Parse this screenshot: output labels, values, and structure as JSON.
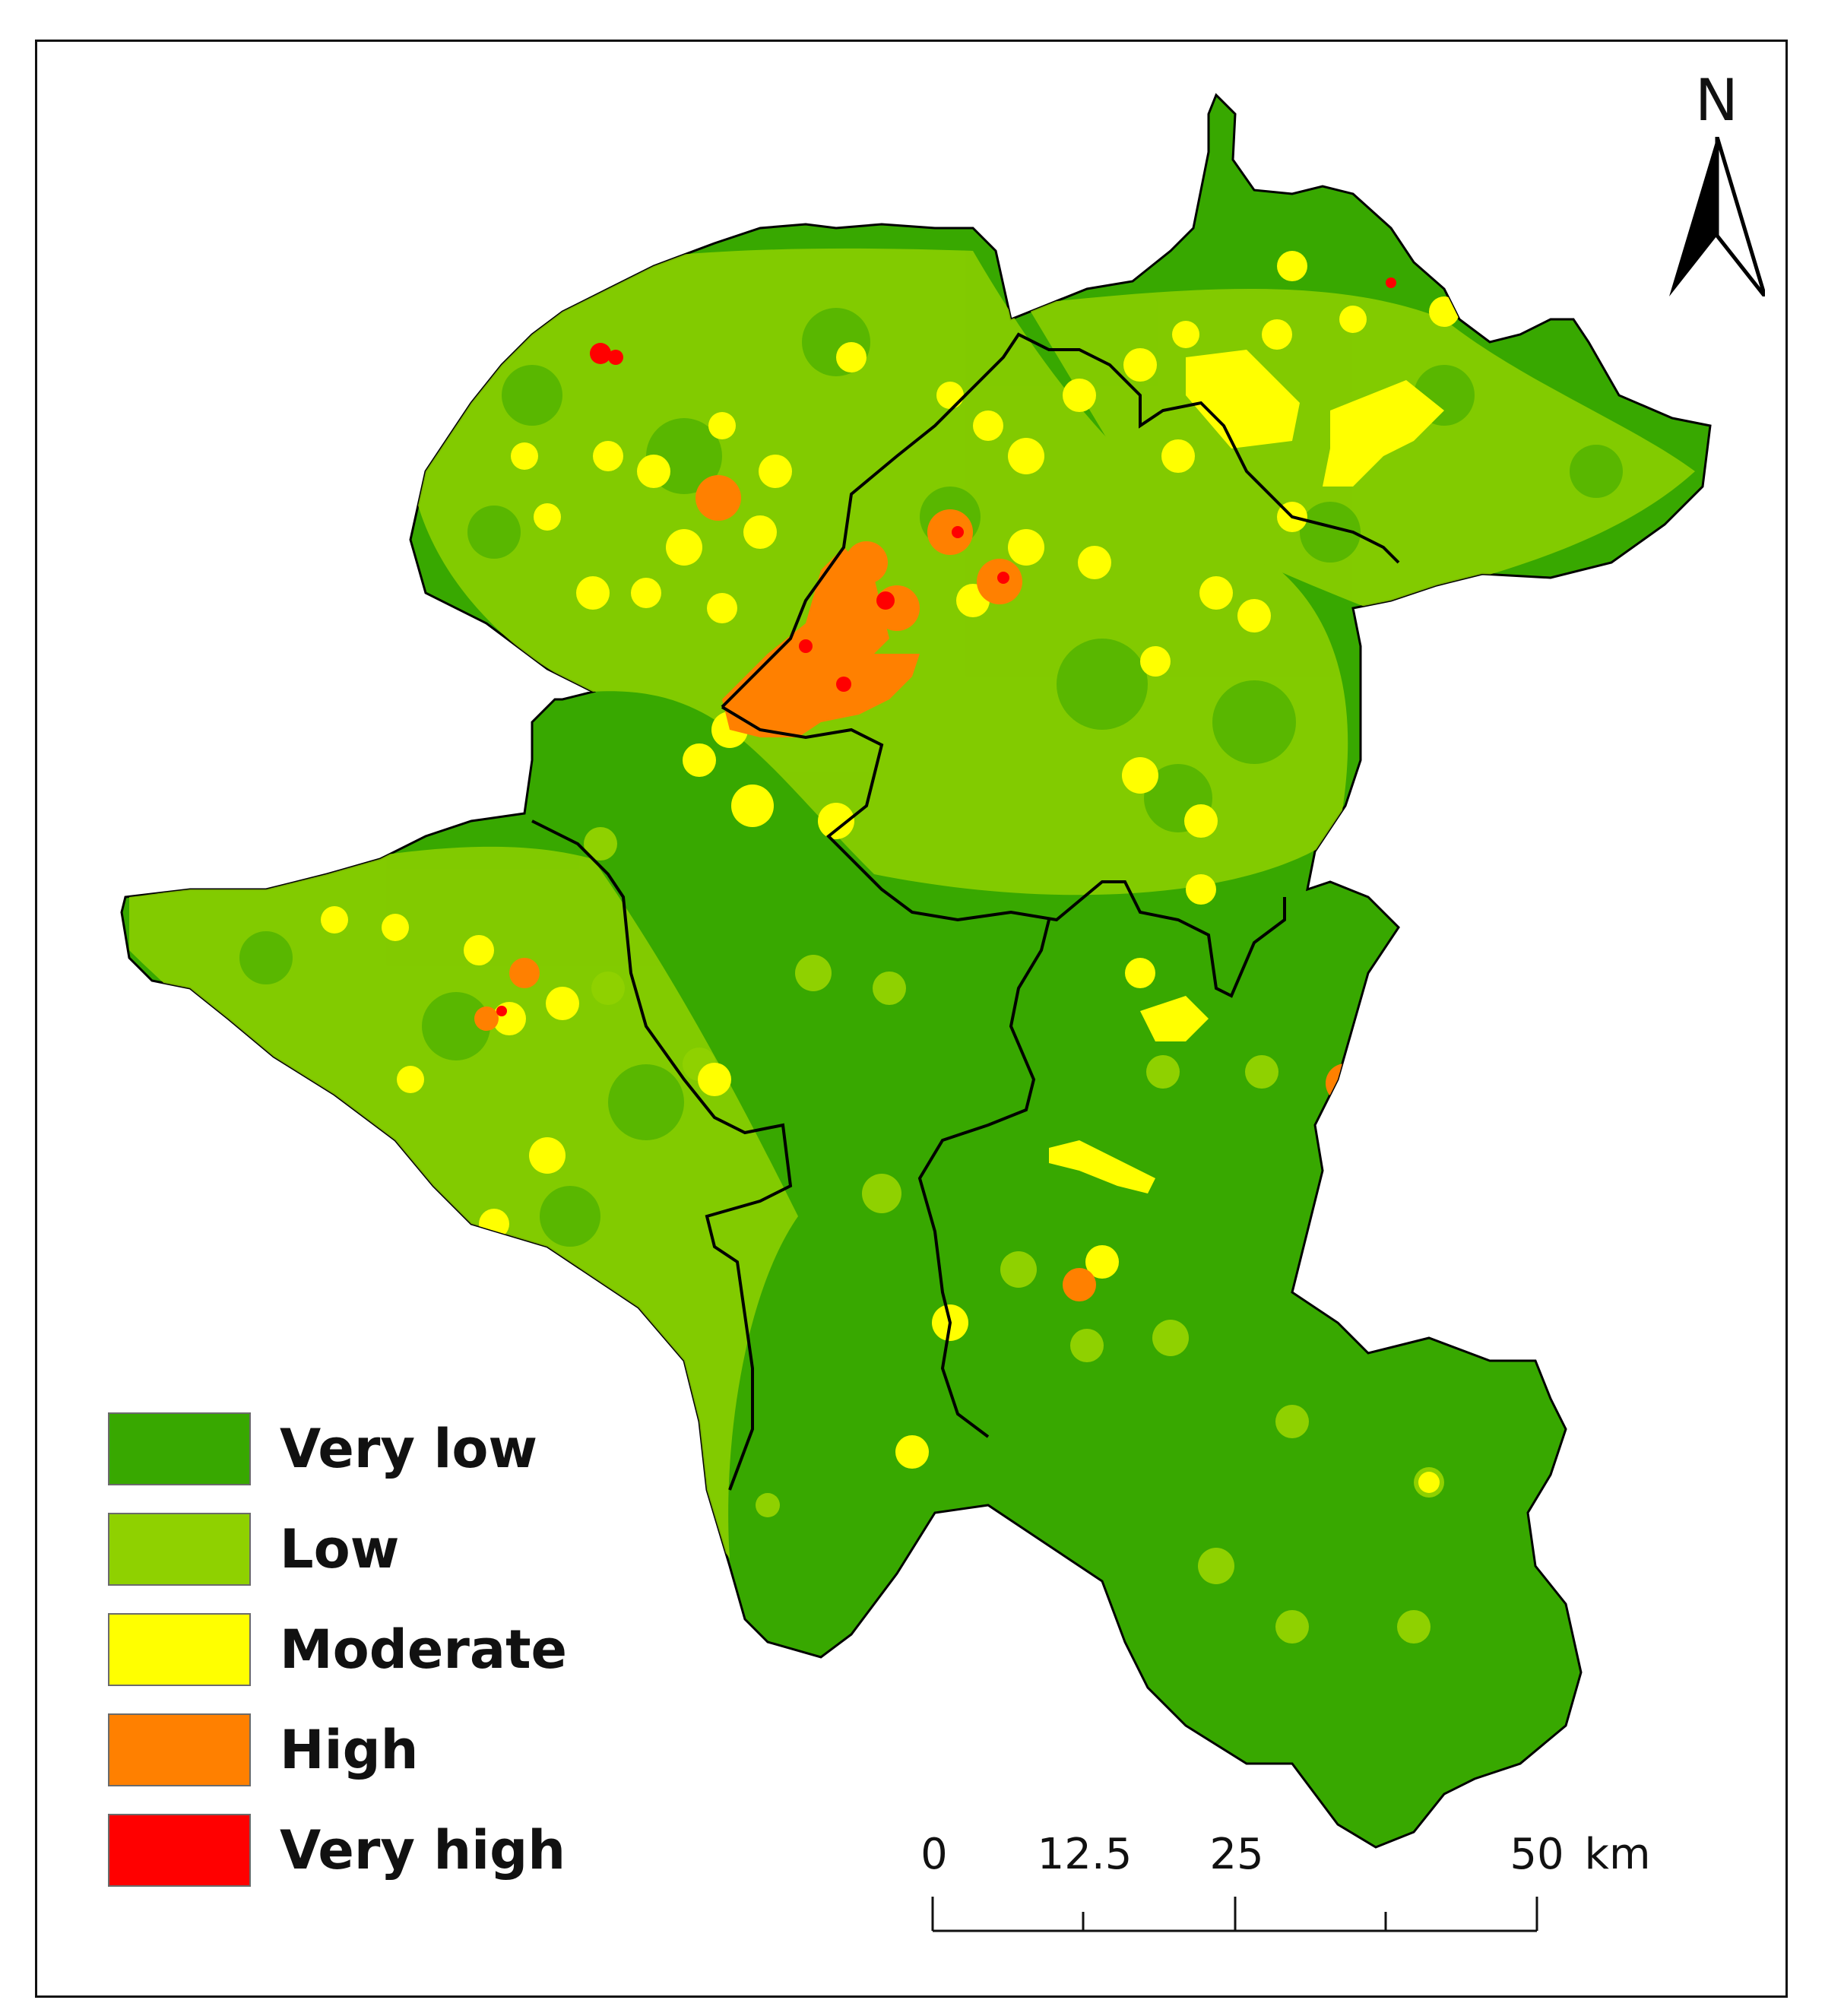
{
  "legend": {
    "items": [
      {
        "label": "Very low",
        "color": "#38a800"
      },
      {
        "label": "Low",
        "color": "#8fd100"
      },
      {
        "label": "Moderate",
        "color": "#ffff00"
      },
      {
        "label": "High",
        "color": "#ff8000"
      },
      {
        "label": "Very high",
        "color": "#ff0000"
      }
    ]
  },
  "north_arrow": {
    "label": "N",
    "icon": "north-arrow-icon"
  },
  "scale_bar": {
    "ticks": [
      "0",
      "12.5",
      "25",
      "50"
    ],
    "unit": "km"
  }
}
